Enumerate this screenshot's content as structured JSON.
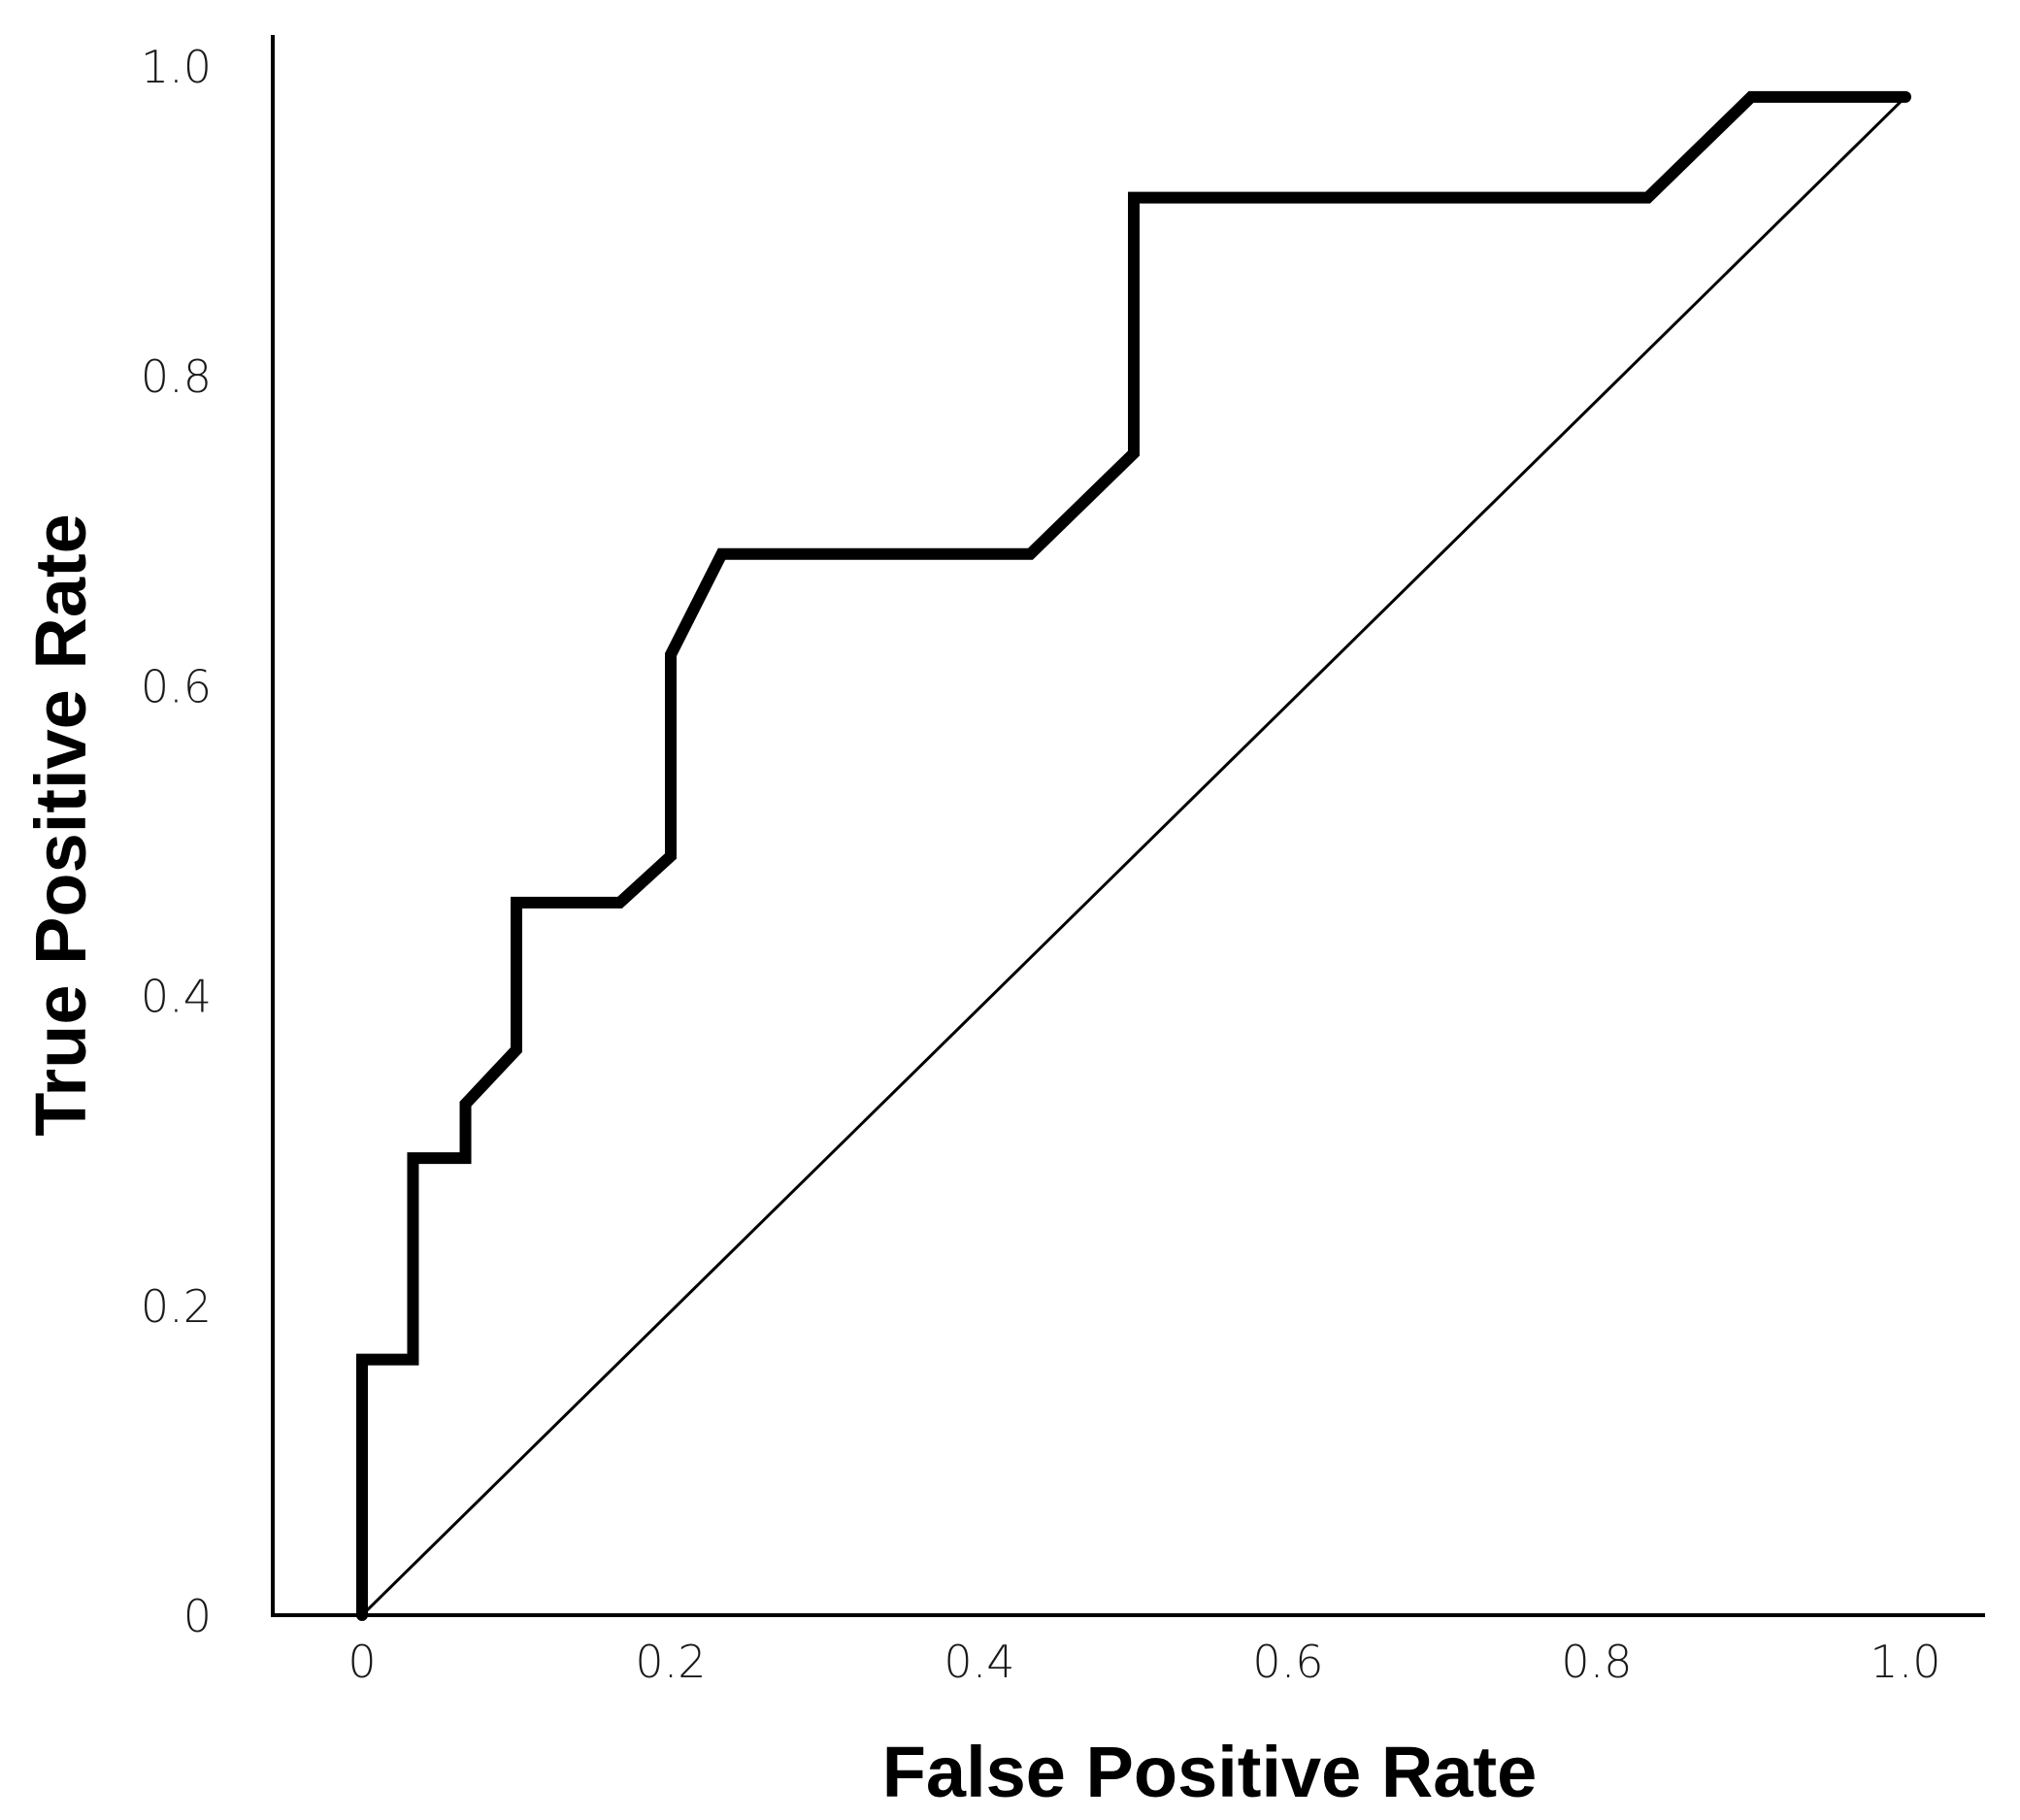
{
  "chart_data": {
    "type": "line",
    "title": "",
    "xlabel": "False Positive Rate",
    "ylabel": "True Positive Rate",
    "xlim": [
      0,
      1.0
    ],
    "ylim": [
      0,
      1.0
    ],
    "x_ticks": [
      "0",
      "0.2",
      "0.4",
      "0.6",
      "0.8",
      "1.0"
    ],
    "y_ticks": [
      "0",
      "0.2",
      "0.4",
      "0.6",
      "0.8",
      "1.0"
    ],
    "grid": false,
    "legend": "none",
    "series": [
      {
        "points": [
          [
            0.0,
            0.0
          ],
          [
            0.0,
            0.165
          ],
          [
            0.033,
            0.165
          ],
          [
            0.033,
            0.295
          ],
          [
            0.067,
            0.295
          ],
          [
            0.067,
            0.33
          ],
          [
            0.1,
            0.365
          ],
          [
            0.1,
            0.46
          ],
          [
            0.167,
            0.46
          ],
          [
            0.2,
            0.49
          ],
          [
            0.2,
            0.62
          ],
          [
            0.233,
            0.685
          ],
          [
            0.433,
            0.685
          ],
          [
            0.5,
            0.75
          ],
          [
            0.5,
            0.915
          ],
          [
            0.833,
            0.915
          ],
          [
            0.9,
            0.98
          ],
          [
            1.0,
            0.98
          ]
        ],
        "color": "#000000"
      },
      {
        "points": [
          [
            0.0,
            0.0
          ],
          [
            1.0,
            0.98
          ]
        ],
        "color": "#000000"
      }
    ]
  }
}
